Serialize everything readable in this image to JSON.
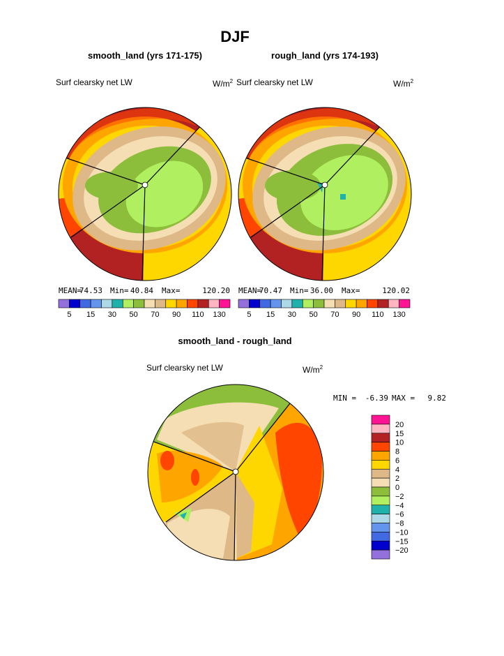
{
  "figure": {
    "title": "DJF",
    "panel_left_title": "smooth_land (yrs 171-175)",
    "panel_right_title": "rough_land (yrs 174-193)",
    "panel_left_label": "Surf clearsky net LW",
    "panel_right_label": "Surf clearsky net LW",
    "units": "W/m",
    "units_sup": "2",
    "diff_title": "smooth_land - rough_land",
    "diff_label": "Surf clearsky net LW",
    "diff_units": "W/m",
    "diff_units_sup": "2"
  },
  "chart_data": [
    {
      "type": "heatmap",
      "name": "smooth_land",
      "projection": "polar stereographic",
      "variable": "Surf clearsky net LW",
      "units": "W/m2",
      "stats": {
        "mean_label": "MEAN=",
        "mean": "74.53",
        "min_label": "Min=",
        "min": "40.84",
        "max_label": "Max=",
        "max": "120.20"
      },
      "colorbar": {
        "colors": [
          "#9370db",
          "#0000cd",
          "#4169e1",
          "#6495ed",
          "#add8e6",
          "#20b2aa",
          "#b0f060",
          "#8cbe3c",
          "#f5deb3",
          "#deb887",
          "#ffd700",
          "#ffa500",
          "#ff4500",
          "#b22222",
          "#ffb6c1",
          "#ff1493"
        ],
        "tick_labels": [
          "5",
          "15",
          "30",
          "50",
          "70",
          "90",
          "110",
          "130"
        ]
      },
      "regions": [
        {
          "band": "outer edge",
          "level_range": [
            110,
            120
          ]
        },
        {
          "band": "outer ring",
          "level_range": [
            90,
            110
          ]
        },
        {
          "band": "mid ring",
          "level_range": [
            70,
            90
          ]
        },
        {
          "band": "inner ring",
          "level_range": [
            50,
            70
          ]
        },
        {
          "band": "interior",
          "level_range": [
            40,
            50
          ]
        }
      ]
    },
    {
      "type": "heatmap",
      "name": "rough_land",
      "projection": "polar stereographic",
      "variable": "Surf clearsky net LW",
      "units": "W/m2",
      "stats": {
        "mean_label": "MEAN=",
        "mean": "70.47",
        "min_label": "Min=",
        "min": "36.00",
        "max_label": "Max=",
        "max": "120.02"
      },
      "colorbar": {
        "colors": [
          "#9370db",
          "#0000cd",
          "#4169e1",
          "#6495ed",
          "#add8e6",
          "#20b2aa",
          "#b0f060",
          "#8cbe3c",
          "#f5deb3",
          "#deb887",
          "#ffd700",
          "#ffa500",
          "#ff4500",
          "#b22222",
          "#ffb6c1",
          "#ff1493"
        ],
        "tick_labels": [
          "5",
          "15",
          "30",
          "50",
          "70",
          "90",
          "110",
          "130"
        ]
      },
      "regions": [
        {
          "band": "outer edge",
          "level_range": [
            110,
            120
          ]
        },
        {
          "band": "outer ring",
          "level_range": [
            90,
            110
          ]
        },
        {
          "band": "mid ring",
          "level_range": [
            70,
            90
          ]
        },
        {
          "band": "inner ring",
          "level_range": [
            50,
            70
          ]
        },
        {
          "band": "interior",
          "level_range": [
            36,
            50
          ]
        }
      ]
    },
    {
      "type": "heatmap",
      "name": "smooth_land - rough_land",
      "projection": "polar stereographic",
      "variable": "Surf clearsky net LW",
      "units": "W/m2",
      "stats": {
        "min_label": "MIN =",
        "min": "-6.39",
        "max_label": "MAX =",
        "max": "9.82"
      },
      "colorbar": {
        "colors": [
          "#ff1493",
          "#ffb6c1",
          "#b22222",
          "#ff4500",
          "#ffa500",
          "#ffd700",
          "#deb887",
          "#f5deb3",
          "#8cbe3c",
          "#b0f060",
          "#20b2aa",
          "#add8e6",
          "#6495ed",
          "#4169e1",
          "#0000cd",
          "#9370db"
        ],
        "tick_labels": [
          "20",
          "15",
          "10",
          "8",
          "6",
          "4",
          "2",
          "0",
          "−2",
          "−4",
          "−6",
          "−8",
          "−10",
          "−15",
          "−20"
        ]
      },
      "regions": [
        {
          "band": "north cap",
          "level_range": [
            -2,
            0
          ]
        },
        {
          "band": "east sector",
          "level_range": [
            6,
            9.82
          ]
        },
        {
          "band": "center",
          "level_range": [
            2,
            6
          ]
        },
        {
          "band": "south-west",
          "level_range": [
            -6.39,
            2
          ]
        }
      ]
    }
  ]
}
